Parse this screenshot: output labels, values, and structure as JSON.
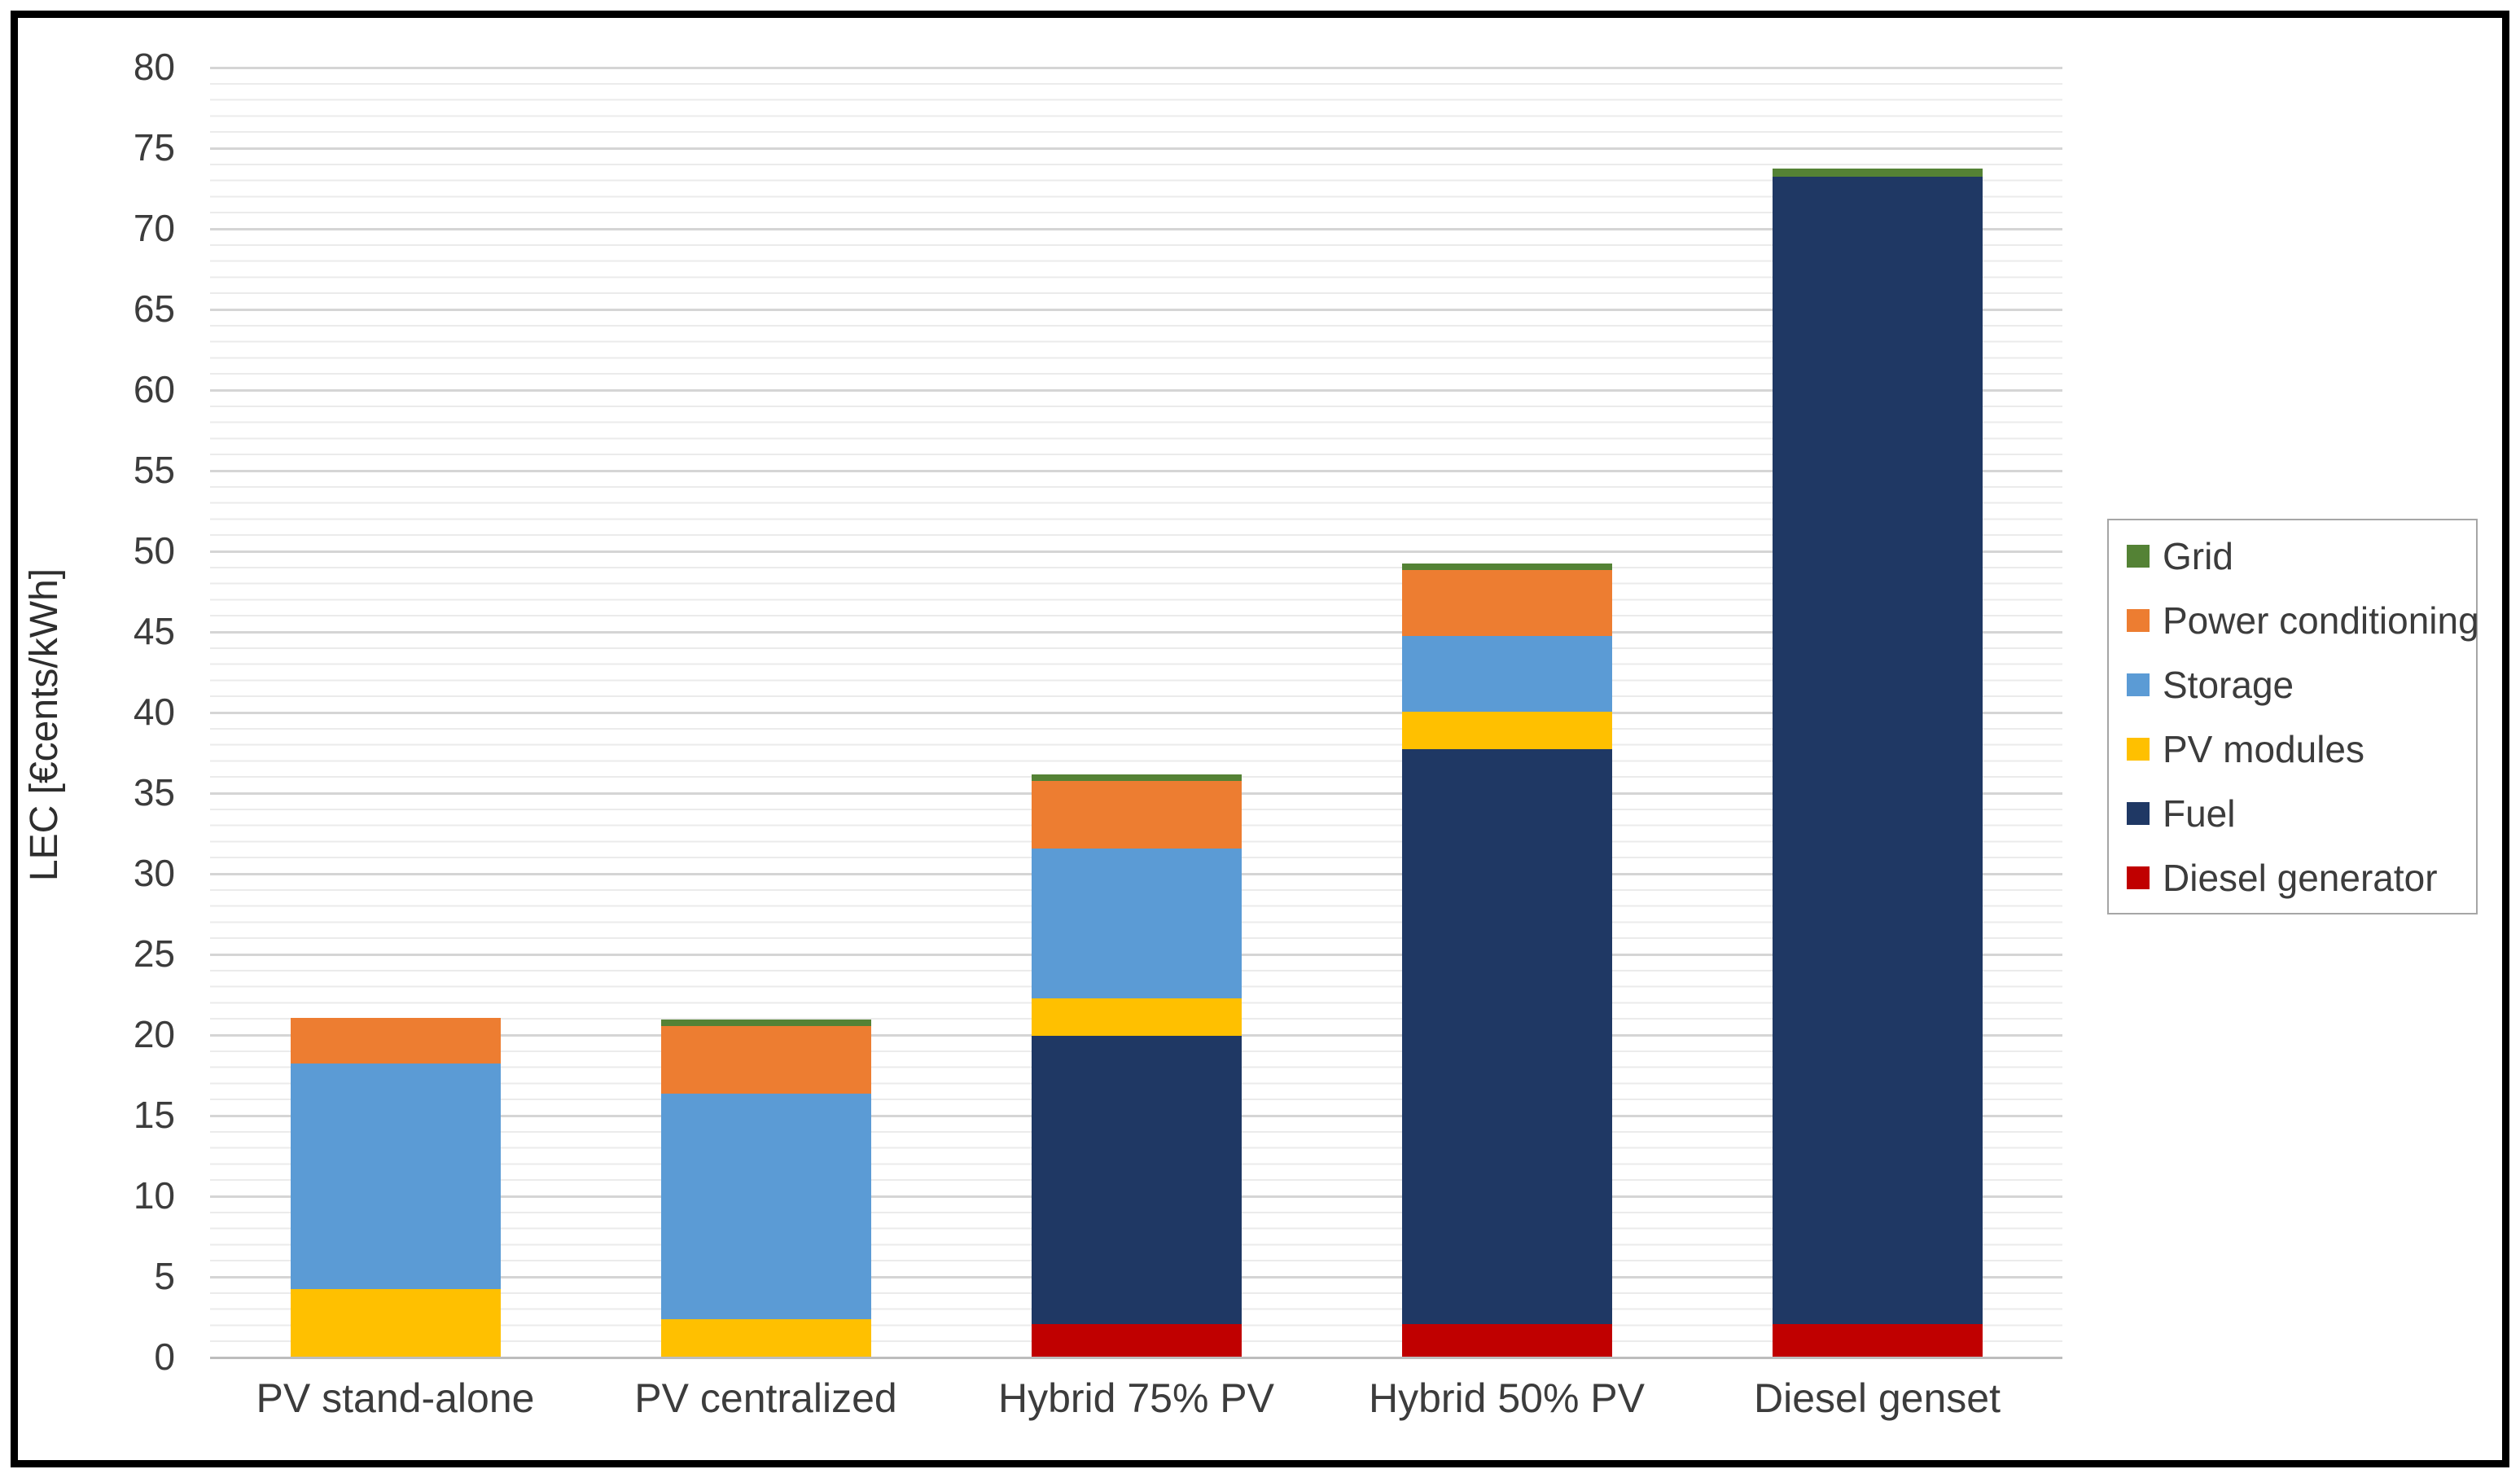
{
  "chart_data": {
    "type": "bar",
    "stacked": true,
    "title": "",
    "categories": [
      "PV stand-alone",
      "PV centralized",
      "Hybrid 75% PV",
      "Hybrid 50% PV",
      "Diesel genset"
    ],
    "series": [
      {
        "name": "Diesel generator",
        "color": "#C00000",
        "values": [
          0,
          0,
          2.0,
          2.0,
          2.0
        ]
      },
      {
        "name": "Fuel",
        "color": "#1F3864",
        "values": [
          0,
          0,
          17.9,
          35.7,
          71.2
        ]
      },
      {
        "name": "PV modules",
        "color": "#FFC000",
        "values": [
          4.2,
          2.3,
          2.3,
          2.3,
          0
        ]
      },
      {
        "name": "Storage",
        "color": "#5B9BD5",
        "values": [
          14.0,
          14.0,
          9.3,
          4.7,
          0
        ]
      },
      {
        "name": "Power conditioning",
        "color": "#ED7D31",
        "values": [
          2.8,
          4.2,
          4.2,
          4.1,
          0
        ]
      },
      {
        "name": "Grid",
        "color": "#548235",
        "values": [
          0,
          0.4,
          0.4,
          0.4,
          0.5
        ]
      }
    ],
    "totals": [
      21.0,
      20.9,
      36.1,
      49.2,
      73.7
    ],
    "xlabel": "",
    "ylabel": "LEC [€cents/kWh]",
    "ylim": [
      0,
      80
    ],
    "y_major_step": 5,
    "y_minor_step": 1,
    "grid": "horizontal major + minor",
    "legend_position": "right"
  },
  "y_axis": {
    "title": "LEC [€cents/kWh]",
    "ticks": [
      0,
      5,
      10,
      15,
      20,
      25,
      30,
      35,
      40,
      45,
      50,
      55,
      60,
      65,
      70,
      75,
      80
    ]
  },
  "x_axis": {
    "categories": [
      "PV stand-alone",
      "PV centralized",
      "Hybrid 75% PV",
      "Hybrid 50% PV",
      "Diesel genset"
    ]
  },
  "legend": {
    "items": [
      {
        "label": "Grid",
        "color": "#548235"
      },
      {
        "label": "Power conditioning",
        "color": "#ED7D31"
      },
      {
        "label": "Storage",
        "color": "#5B9BD5"
      },
      {
        "label": "PV modules",
        "color": "#FFC000"
      },
      {
        "label": "Fuel",
        "color": "#1F3864"
      },
      {
        "label": "Diesel generator",
        "color": "#C00000"
      }
    ]
  }
}
